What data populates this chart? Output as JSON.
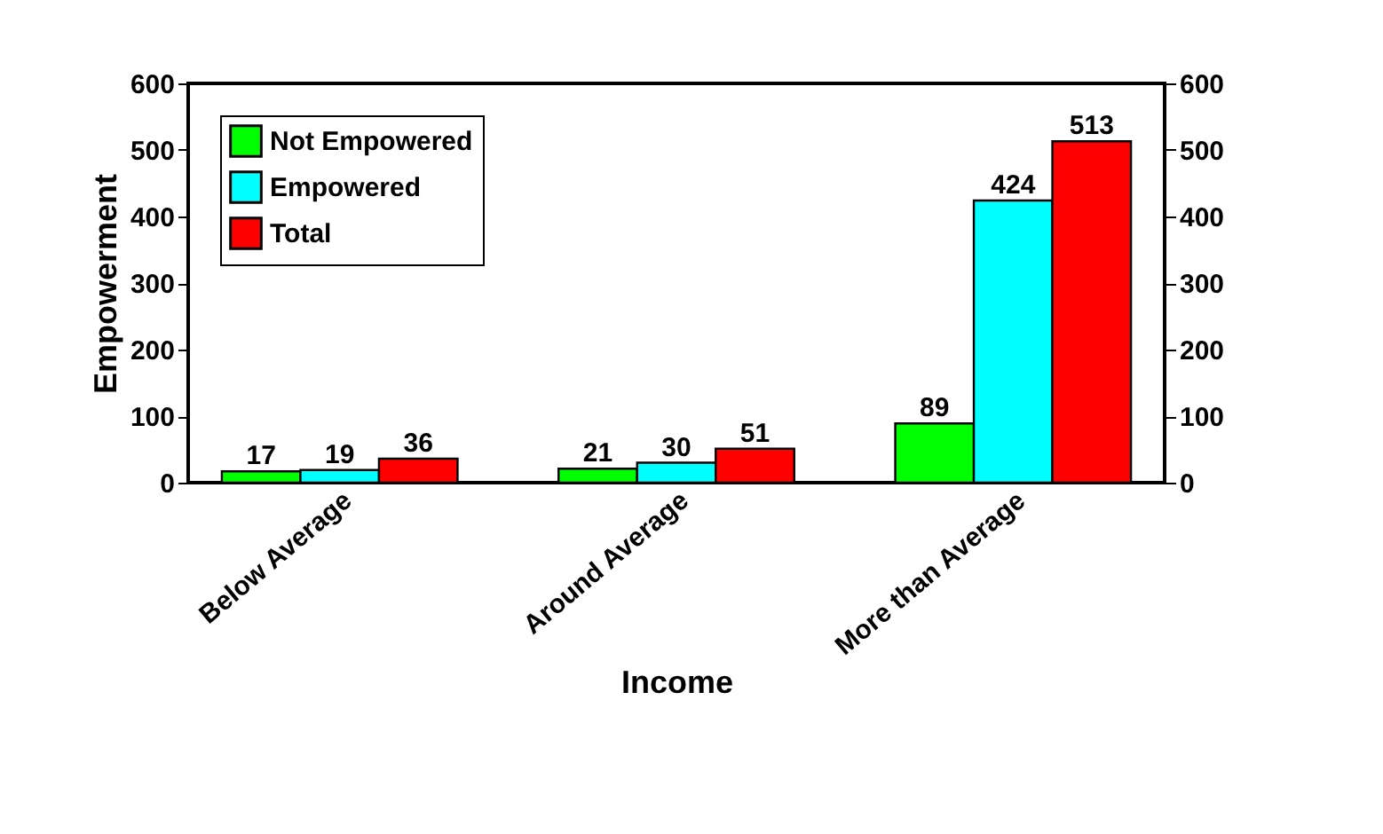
{
  "chart_data": {
    "type": "bar",
    "xlabel": "Income",
    "ylabel": "Empowerment",
    "categories": [
      "Below Average",
      "Around Average",
      "More than Average"
    ],
    "series": [
      {
        "name": "Not Empowered",
        "color": "#00ff00",
        "values": [
          17,
          21,
          89
        ]
      },
      {
        "name": "Empowered",
        "color": "#00ffff",
        "values": [
          19,
          30,
          424
        ]
      },
      {
        "name": "Total",
        "color": "#ff0000",
        "values": [
          36,
          51,
          513
        ]
      }
    ],
    "ylim": [
      0,
      600
    ],
    "yticks": [
      0,
      100,
      200,
      300,
      400,
      500,
      600
    ],
    "y2lim": [
      0,
      600
    ],
    "y2ticks": [
      0,
      100,
      200,
      300,
      400,
      500,
      600
    ],
    "data_labels": true,
    "legend": "top left",
    "grid": false
  }
}
